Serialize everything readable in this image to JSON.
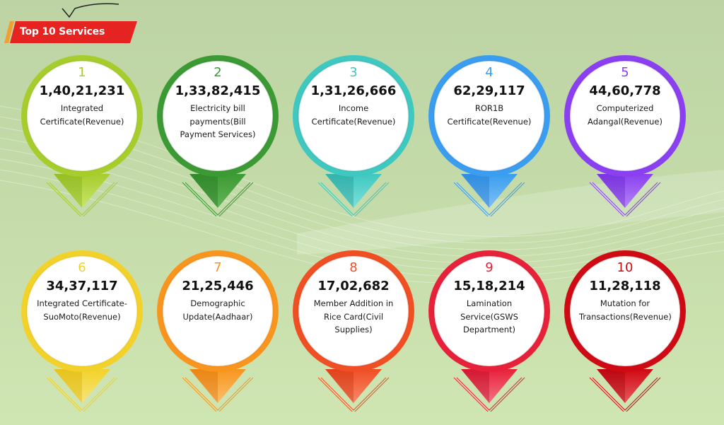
{
  "header": {
    "title": "Top 10 Services"
  },
  "colors": {
    "header_red": "#e52421",
    "header_accent": "#f0a030"
  },
  "services": [
    {
      "rank": "1",
      "count": "1,40,21,231",
      "label": "Integrated Certificate(Revenue)",
      "color": "#a6cd2c",
      "dark": "#7aa516",
      "light": "#cbe46a"
    },
    {
      "rank": "2",
      "count": "1,33,82,415",
      "label": "Electricity bill payments(Bill Payment Services)",
      "color": "#3c9a34",
      "dark": "#1f6e1d",
      "light": "#63b456"
    },
    {
      "rank": "3",
      "count": "1,31,26,666",
      "label": "Income Certificate(Revenue)",
      "color": "#3ec8c0",
      "dark": "#1e8f8a",
      "light": "#7ee0da"
    },
    {
      "rank": "4",
      "count": "62,29,117",
      "label": "ROR1B Certificate(Revenue)",
      "color": "#3a9df0",
      "dark": "#1c6fc4",
      "light": "#7fc0f6"
    },
    {
      "rank": "5",
      "count": "44,60,778",
      "label": "Computerized Adangal(Revenue)",
      "color": "#8a3ff0",
      "dark": "#5e1fc2",
      "light": "#b784f6"
    },
    {
      "rank": "6",
      "count": "34,37,117",
      "label": "Integrated Certificate-SuoMoto(Revenue)",
      "color": "#f2d22a",
      "dark": "#d4a800",
      "light": "#f8e47a"
    },
    {
      "rank": "7",
      "count": "21,25,446",
      "label": "Demographic Update(Aadhaar)",
      "color": "#f7951e",
      "dark": "#d86a00",
      "light": "#fbbf6c"
    },
    {
      "rank": "8",
      "count": "17,02,682",
      "label": "Member Addition in Rice Card(Civil Supplies)",
      "color": "#f04e23",
      "dark": "#c22e0c",
      "light": "#f78a6a"
    },
    {
      "rank": "9",
      "count": "15,18,214",
      "label": "Lamination Service(GSWS Department)",
      "color": "#e8213a",
      "dark": "#b3081f",
      "light": "#f27486"
    },
    {
      "rank": "10",
      "count": "11,28,118",
      "label": "Mutation for Transactions(Revenue)",
      "color": "#cf0a14",
      "dark": "#9a0008",
      "light": "#e85a60"
    }
  ]
}
